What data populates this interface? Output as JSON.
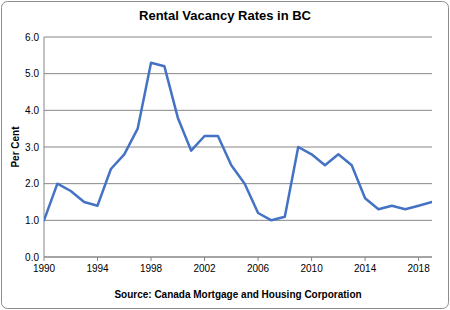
{
  "chart_data": {
    "type": "line",
    "title": "Rental Vacancy Rates in BC",
    "ylabel": "Per Cent",
    "xlabel": "Source:  Canada Mortgage and Housing Corporation",
    "x": [
      1990,
      1991,
      1992,
      1993,
      1994,
      1995,
      1996,
      1997,
      1998,
      1999,
      2000,
      2001,
      2002,
      2003,
      2004,
      2005,
      2006,
      2007,
      2008,
      2009,
      2010,
      2011,
      2012,
      2013,
      2014,
      2015,
      2016,
      2017,
      2018,
      2019
    ],
    "values": [
      1.0,
      2.0,
      1.8,
      1.5,
      1.4,
      2.4,
      2.8,
      3.5,
      5.3,
      5.2,
      3.8,
      2.9,
      3.3,
      3.3,
      2.5,
      2.0,
      1.2,
      1.0,
      1.1,
      3.0,
      2.8,
      2.5,
      2.8,
      2.5,
      1.6,
      1.3,
      1.4,
      1.3,
      1.4,
      1.5
    ],
    "color": "#4472c4",
    "xlim": [
      1990,
      2019
    ],
    "xticks": [
      1990,
      1994,
      1998,
      2002,
      2006,
      2010,
      2014,
      2018
    ],
    "ylim": [
      0,
      6
    ],
    "yticks": [
      {
        "value": 0,
        "label": "0.0"
      },
      {
        "value": 1,
        "label": "1.0"
      },
      {
        "value": 2,
        "label": "2.0"
      },
      {
        "value": 3,
        "label": "3.0"
      },
      {
        "value": 4,
        "label": "4.0"
      },
      {
        "value": 5,
        "label": "5.0"
      },
      {
        "value": 6,
        "label": "6.0"
      }
    ],
    "grid": true
  }
}
